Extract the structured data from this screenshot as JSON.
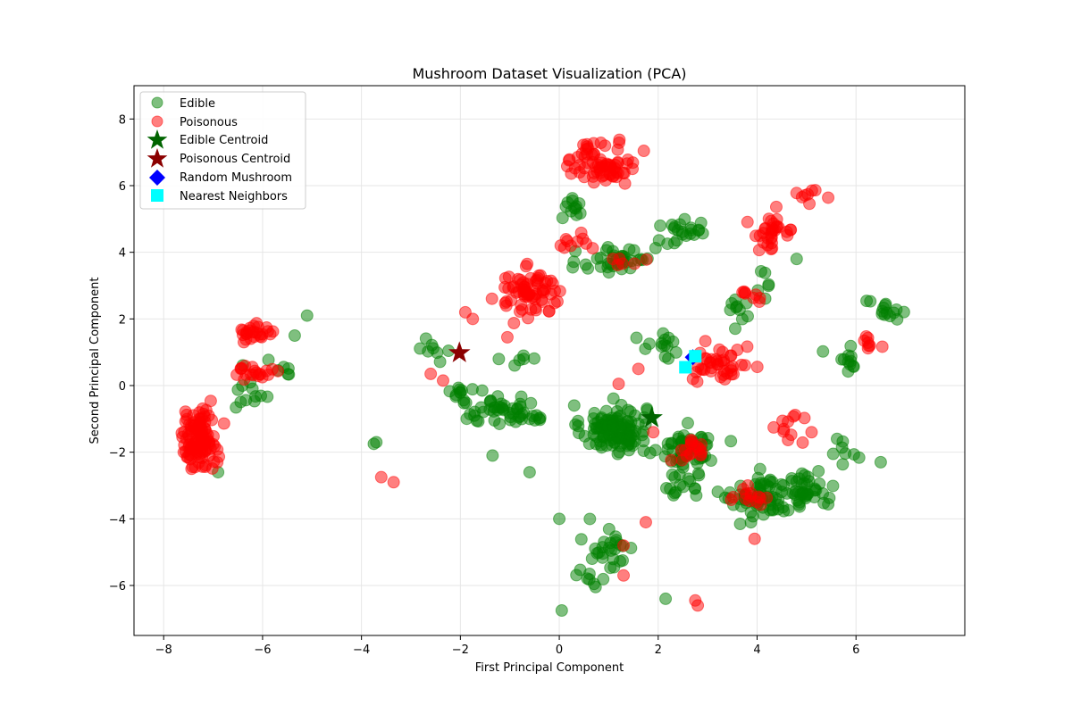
{
  "chart_data": {
    "type": "scatter",
    "title": "Mushroom Dataset Visualization (PCA)",
    "xlabel": "First Principal Component",
    "ylabel": "Second Principal Component",
    "xlim": [
      -8.6,
      8.2
    ],
    "ylim": [
      -7.5,
      9.0
    ],
    "xticks": [
      -8,
      -6,
      -4,
      -2,
      0,
      2,
      4,
      6
    ],
    "yticks": [
      -6,
      -4,
      -2,
      0,
      2,
      4,
      6,
      8
    ],
    "xtick_labels": [
      "−8",
      "−6",
      "−4",
      "−2",
      "0",
      "2",
      "4",
      "6"
    ],
    "ytick_labels": [
      "−6",
      "−4",
      "−2",
      "0",
      "2",
      "4",
      "6",
      "8"
    ],
    "grid": true,
    "legend_position": "top-left",
    "colors": {
      "edible": "#008000",
      "poisonous": "#ff0000",
      "edible_centroid": "#006400",
      "poisonous_centroid": "#8b0000",
      "random": "#0000ff",
      "neighbors": "#00ffff"
    },
    "series": [
      {
        "name": "Edible",
        "marker": "circle",
        "color": "#008000",
        "clusters": [
          {
            "center": [
              1.1,
              -1.3
            ],
            "spread": [
              0.55,
              0.6
            ],
            "n": 120
          },
          {
            "center": [
              2.6,
              -1.9
            ],
            "spread": [
              0.45,
              0.5
            ],
            "n": 60
          },
          {
            "center": [
              4.1,
              -3.4
            ],
            "spread": [
              0.5,
              0.55
            ],
            "n": 70
          },
          {
            "center": [
              5.0,
              -3.1
            ],
            "spread": [
              0.35,
              0.45
            ],
            "n": 40
          },
          {
            "center": [
              1.2,
              3.8
            ],
            "spread": [
              0.6,
              0.5
            ],
            "n": 40
          },
          {
            "center": [
              2.5,
              4.6
            ],
            "spread": [
              0.5,
              0.35
            ],
            "n": 22
          },
          {
            "center": [
              -1.4,
              -0.7
            ],
            "spread": [
              0.55,
              0.35
            ],
            "n": 32
          },
          {
            "center": [
              -0.6,
              -0.8
            ],
            "spread": [
              0.35,
              0.4
            ],
            "n": 20
          },
          {
            "center": [
              0.3,
              5.4
            ],
            "spread": [
              0.25,
              0.35
            ],
            "n": 12
          },
          {
            "center": [
              2.1,
              1.1
            ],
            "spread": [
              0.35,
              0.35
            ],
            "n": 14
          },
          {
            "center": [
              6.6,
              2.2
            ],
            "spread": [
              0.35,
              0.3
            ],
            "n": 14
          },
          {
            "center": [
              5.9,
              0.8
            ],
            "spread": [
              0.35,
              0.35
            ],
            "n": 12
          },
          {
            "center": [
              1.0,
              -4.8
            ],
            "spread": [
              0.45,
              0.6
            ],
            "n": 26
          },
          {
            "center": [
              0.7,
              -5.8
            ],
            "spread": [
              0.25,
              0.25
            ],
            "n": 8
          },
          {
            "center": [
              2.5,
              -3.0
            ],
            "spread": [
              0.4,
              0.35
            ],
            "n": 16
          },
          {
            "center": [
              -6.3,
              -0.3
            ],
            "spread": [
              0.25,
              0.5
            ],
            "n": 12
          },
          {
            "center": [
              -2.5,
              1.1
            ],
            "spread": [
              0.35,
              0.3
            ],
            "n": 8
          },
          {
            "center": [
              -2.1,
              -0.3
            ],
            "spread": [
              0.3,
              0.3
            ],
            "n": 10
          },
          {
            "center": [
              -0.7,
              0.8
            ],
            "spread": [
              0.3,
              0.2
            ],
            "n": 6
          },
          {
            "center": [
              3.6,
              2.2
            ],
            "spread": [
              0.3,
              0.4
            ],
            "n": 10
          },
          {
            "center": [
              -5.6,
              0.5
            ],
            "spread": [
              0.3,
              0.3
            ],
            "n": 6
          },
          {
            "center": [
              5.8,
              -2.0
            ],
            "spread": [
              0.4,
              0.4
            ],
            "n": 8
          },
          {
            "center": [
              4.2,
              3.2
            ],
            "spread": [
              0.3,
              0.3
            ],
            "n": 6
          }
        ],
        "points": [
          [
            -3.7,
            -1.7
          ],
          [
            -3.75,
            -1.75
          ],
          [
            -5.1,
            2.1
          ],
          [
            -5.35,
            1.5
          ],
          [
            -6.9,
            -2.6
          ],
          [
            0.05,
            -6.75
          ],
          [
            2.15,
            -6.4
          ],
          [
            6.5,
            -2.3
          ],
          [
            0.0,
            -4.0
          ],
          [
            -0.6,
            -2.6
          ],
          [
            4.8,
            3.8
          ],
          [
            -1.35,
            -2.1
          ]
        ]
      },
      {
        "name": "Poisonous",
        "marker": "circle",
        "color": "#ff0000",
        "clusters": [
          {
            "center": [
              -7.3,
              -1.6
            ],
            "spread": [
              0.3,
              0.75
            ],
            "n": 110
          },
          {
            "center": [
              -6.1,
              1.6
            ],
            "spread": [
              0.3,
              0.2
            ],
            "n": 26
          },
          {
            "center": [
              -6.2,
              0.4
            ],
            "spread": [
              0.3,
              0.2
            ],
            "n": 20
          },
          {
            "center": [
              0.9,
              6.7
            ],
            "spread": [
              0.6,
              0.55
            ],
            "n": 70
          },
          {
            "center": [
              -0.6,
              2.8
            ],
            "spread": [
              0.55,
              0.55
            ],
            "n": 70
          },
          {
            "center": [
              4.3,
              4.6
            ],
            "spread": [
              0.4,
              0.45
            ],
            "n": 32
          },
          {
            "center": [
              3.3,
              0.6
            ],
            "spread": [
              0.45,
              0.5
            ],
            "n": 42
          },
          {
            "center": [
              2.6,
              -2.0
            ],
            "spread": [
              0.3,
              0.35
            ],
            "n": 18
          },
          {
            "center": [
              3.9,
              -3.3
            ],
            "spread": [
              0.35,
              0.3
            ],
            "n": 14
          },
          {
            "center": [
              5.0,
              5.7
            ],
            "spread": [
              0.25,
              0.15
            ],
            "n": 8
          },
          {
            "center": [
              4.6,
              -1.3
            ],
            "spread": [
              0.3,
              0.3
            ],
            "n": 12
          },
          {
            "center": [
              6.3,
              1.3
            ],
            "spread": [
              0.25,
              0.3
            ],
            "n": 8
          },
          {
            "center": [
              0.3,
              4.3
            ],
            "spread": [
              0.35,
              0.2
            ],
            "n": 10
          },
          {
            "center": [
              3.8,
              2.7
            ],
            "spread": [
              0.2,
              0.3
            ],
            "n": 8
          },
          {
            "center": [
              1.3,
              3.7
            ],
            "spread": [
              0.3,
              0.15
            ],
            "n": 6
          }
        ],
        "points": [
          [
            -3.6,
            -2.75
          ],
          [
            -3.35,
            -2.9
          ],
          [
            -1.9,
            2.2
          ],
          [
            -1.75,
            2.0
          ],
          [
            -2.6,
            0.35
          ],
          [
            -2.35,
            0.15
          ],
          [
            2.75,
            -6.45
          ],
          [
            2.8,
            -6.6
          ],
          [
            1.3,
            -5.7
          ],
          [
            1.3,
            -4.8
          ],
          [
            1.75,
            -4.1
          ],
          [
            3.95,
            -4.6
          ],
          [
            -1.05,
            1.45
          ],
          [
            1.6,
            0.5
          ],
          [
            1.9,
            -1.4
          ],
          [
            1.2,
            0.05
          ]
        ]
      },
      {
        "name": "Edible Centroid",
        "marker": "star",
        "color": "#006400",
        "points": [
          [
            1.87,
            -0.97
          ]
        ]
      },
      {
        "name": "Poisonous Centroid",
        "marker": "star",
        "color": "#8b0000",
        "points": [
          [
            -2.02,
            0.98
          ]
        ]
      },
      {
        "name": "Random Mushroom",
        "marker": "diamond",
        "color": "#0000ff",
        "points": [
          [
            2.7,
            0.85
          ]
        ]
      },
      {
        "name": "Nearest Neighbors",
        "marker": "square",
        "color": "#00ffff",
        "points": [
          [
            2.55,
            0.55
          ],
          [
            2.75,
            0.88
          ]
        ]
      }
    ]
  }
}
